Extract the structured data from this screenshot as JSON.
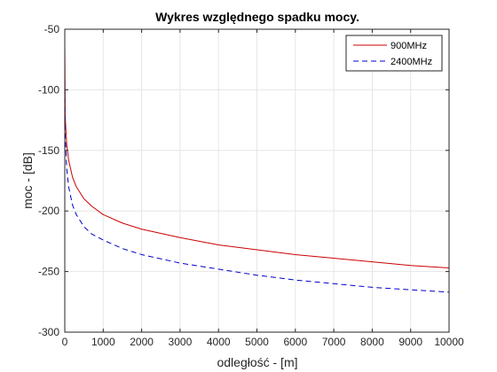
{
  "chart_data": {
    "type": "line",
    "title": "Wykres względnego spadku mocy.",
    "xlabel": "odległość - [m]",
    "ylabel": "moc - [dB]",
    "xlim": [
      0,
      10000
    ],
    "ylim": [
      -300,
      -50
    ],
    "xticks": [
      0,
      1000,
      2000,
      3000,
      4000,
      5000,
      6000,
      7000,
      8000,
      9000,
      10000
    ],
    "yticks": [
      -300,
      -250,
      -200,
      -150,
      -100,
      -50
    ],
    "grid": true,
    "legend_position": "top-right",
    "series": [
      {
        "name": "900MHz",
        "color": "#cc0000",
        "line_style": "solid",
        "x": [
          1,
          10,
          50,
          100,
          200,
          300,
          500,
          700,
          1000,
          1500,
          2000,
          3000,
          4000,
          5000,
          6000,
          7000,
          8000,
          9000,
          10000
        ],
        "y": [
          -65,
          -122,
          -145,
          -158,
          -172,
          -180,
          -190,
          -196,
          -203,
          -210,
          -215,
          -222,
          -228,
          -232,
          -236,
          -239,
          -242,
          -245,
          -247
        ]
      },
      {
        "name": "2400MHz",
        "color": "#0000cc",
        "line_style": "dashed",
        "x": [
          1,
          10,
          50,
          100,
          200,
          300,
          500,
          700,
          1000,
          1500,
          2000,
          3000,
          4000,
          5000,
          6000,
          7000,
          8000,
          9000,
          10000
        ],
        "y": [
          -92,
          -137,
          -165,
          -180,
          -195,
          -203,
          -213,
          -219,
          -224,
          -231,
          -236,
          -243,
          -248,
          -253,
          -257,
          -260,
          -263,
          -265,
          -267
        ]
      }
    ]
  }
}
